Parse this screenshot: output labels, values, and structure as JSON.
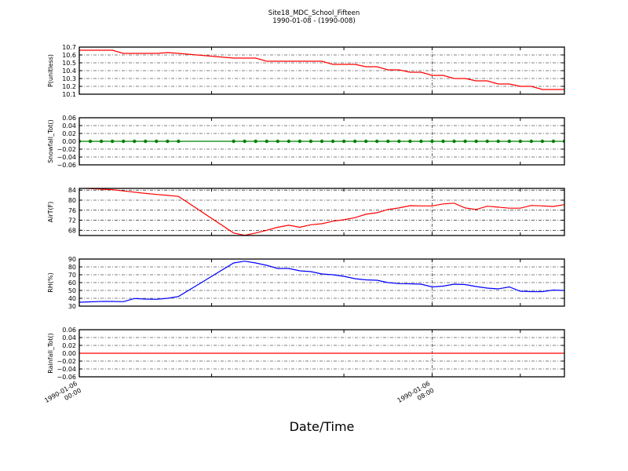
{
  "title": "Site18_MDC_School_Fifteen",
  "subtitle": "1990-01-08 - (1990-008)",
  "chart_data": {
    "type": "line",
    "xlabel": "Date/Time",
    "x_range": [
      "1990-01-06 00:00",
      "1990-01-06 11:00"
    ],
    "x_tick_labels": [
      {
        "time": "00:00",
        "date": "1990-01-06",
        "clock": "00:00"
      },
      {
        "time": "08:00",
        "date": "1990-01-06",
        "clock": "08:00"
      }
    ],
    "x_minor_ticks": [
      "03:00",
      "06:00",
      "10:00"
    ],
    "grid": true,
    "x": [
      "00:00",
      "00:15",
      "00:30",
      "00:45",
      "01:00",
      "01:15",
      "01:30",
      "01:45",
      "02:00",
      "02:15",
      "03:30",
      "03:45",
      "04:00",
      "04:15",
      "04:30",
      "04:45",
      "05:00",
      "05:15",
      "05:30",
      "05:45",
      "06:00",
      "06:15",
      "06:30",
      "06:45",
      "07:00",
      "07:15",
      "07:30",
      "07:45",
      "08:00",
      "08:15",
      "08:30",
      "08:45",
      "09:00",
      "09:15",
      "09:30",
      "09:45",
      "10:00",
      "10:15",
      "10:30",
      "10:45",
      "11:00"
    ],
    "panels": [
      {
        "ylabel": "P(unitless)",
        "color": "#ff0000",
        "markers": false,
        "ylim": [
          10.1,
          10.7
        ],
        "yticks": [
          "10.1",
          "10.2",
          "10.3",
          "10.4",
          "10.5",
          "10.6",
          "10.7"
        ],
        "values": [
          10.66,
          10.66,
          10.66,
          10.66,
          10.62,
          10.62,
          10.62,
          10.62,
          10.63,
          10.62,
          10.56,
          10.56,
          10.56,
          10.52,
          10.52,
          10.52,
          10.52,
          10.52,
          10.52,
          10.48,
          10.48,
          10.48,
          10.45,
          10.45,
          10.41,
          10.41,
          10.38,
          10.38,
          10.34,
          10.34,
          10.3,
          10.3,
          10.27,
          10.27,
          10.23,
          10.23,
          10.2,
          10.2,
          10.16,
          10.16,
          10.16
        ]
      },
      {
        "ylabel": "Snowfall_Tot()",
        "color": "#008000",
        "markers": true,
        "ylim": [
          -0.06,
          0.06
        ],
        "yticks": [
          "−0.06",
          "−0.04",
          "−0.02",
          "0.00",
          "0.02",
          "0.04",
          "0.06"
        ],
        "values": [
          0,
          0,
          0,
          0,
          0,
          0,
          0,
          0,
          0,
          0,
          0,
          0,
          0,
          0,
          0,
          0,
          0,
          0,
          0,
          0,
          0,
          0,
          0,
          0,
          0,
          0,
          0,
          0,
          0,
          0,
          0,
          0,
          0,
          0,
          0,
          0,
          0,
          0,
          0,
          0,
          0
        ]
      },
      {
        "ylabel": "AirT(F)",
        "color": "#ff0000",
        "markers": false,
        "ylim": [
          65.9,
          84.7
        ],
        "yticks": [
          "68",
          "72",
          "76",
          "80",
          "84"
        ],
        "values": [
          84.8,
          84.6,
          84.4,
          84.2,
          83.7,
          83.2,
          82.7,
          82.3,
          81.9,
          81.5,
          66.9,
          66.0,
          66.9,
          68.0,
          69.2,
          70.0,
          69.2,
          70.2,
          70.6,
          71.6,
          72.2,
          73.0,
          74.4,
          75.0,
          76.3,
          76.9,
          77.8,
          77.7,
          77.7,
          78.5,
          78.8,
          76.9,
          76.3,
          77.6,
          77.2,
          76.8,
          76.8,
          77.9,
          77.7,
          77.5,
          78.2
        ]
      },
      {
        "ylabel": "RH(%)",
        "color": "#0000ff",
        "markers": false,
        "ylim": [
          30,
          90
        ],
        "yticks": [
          "30",
          "40",
          "50",
          "60",
          "70",
          "80",
          "90"
        ],
        "values": [
          35,
          35.5,
          36,
          36,
          35.7,
          39.7,
          39,
          38.7,
          40,
          42.3,
          85,
          87.3,
          85,
          82,
          78,
          78,
          75,
          74,
          71,
          70,
          68,
          65,
          63.5,
          63,
          60,
          58.7,
          58.5,
          58,
          54.5,
          55.5,
          58,
          57.5,
          55,
          53,
          52,
          54.5,
          49,
          48.5,
          48.5,
          50.5,
          50
        ]
      },
      {
        "ylabel": "Rainfall_Tot()",
        "color": "#ff0000",
        "markers": false,
        "ylim": [
          -0.06,
          0.06
        ],
        "yticks": [
          "−0.06",
          "−0.04",
          "−0.02",
          "0.00",
          "0.02",
          "0.04",
          "0.06"
        ],
        "values": [
          0,
          0,
          0,
          0,
          0,
          0,
          0,
          0,
          0,
          0,
          0,
          0,
          0,
          0,
          0,
          0,
          0,
          0,
          0,
          0,
          0,
          0,
          0,
          0,
          0,
          0,
          0,
          0,
          0,
          0,
          0,
          0,
          0,
          0,
          0,
          0,
          0,
          0,
          0,
          0,
          0
        ]
      }
    ]
  }
}
